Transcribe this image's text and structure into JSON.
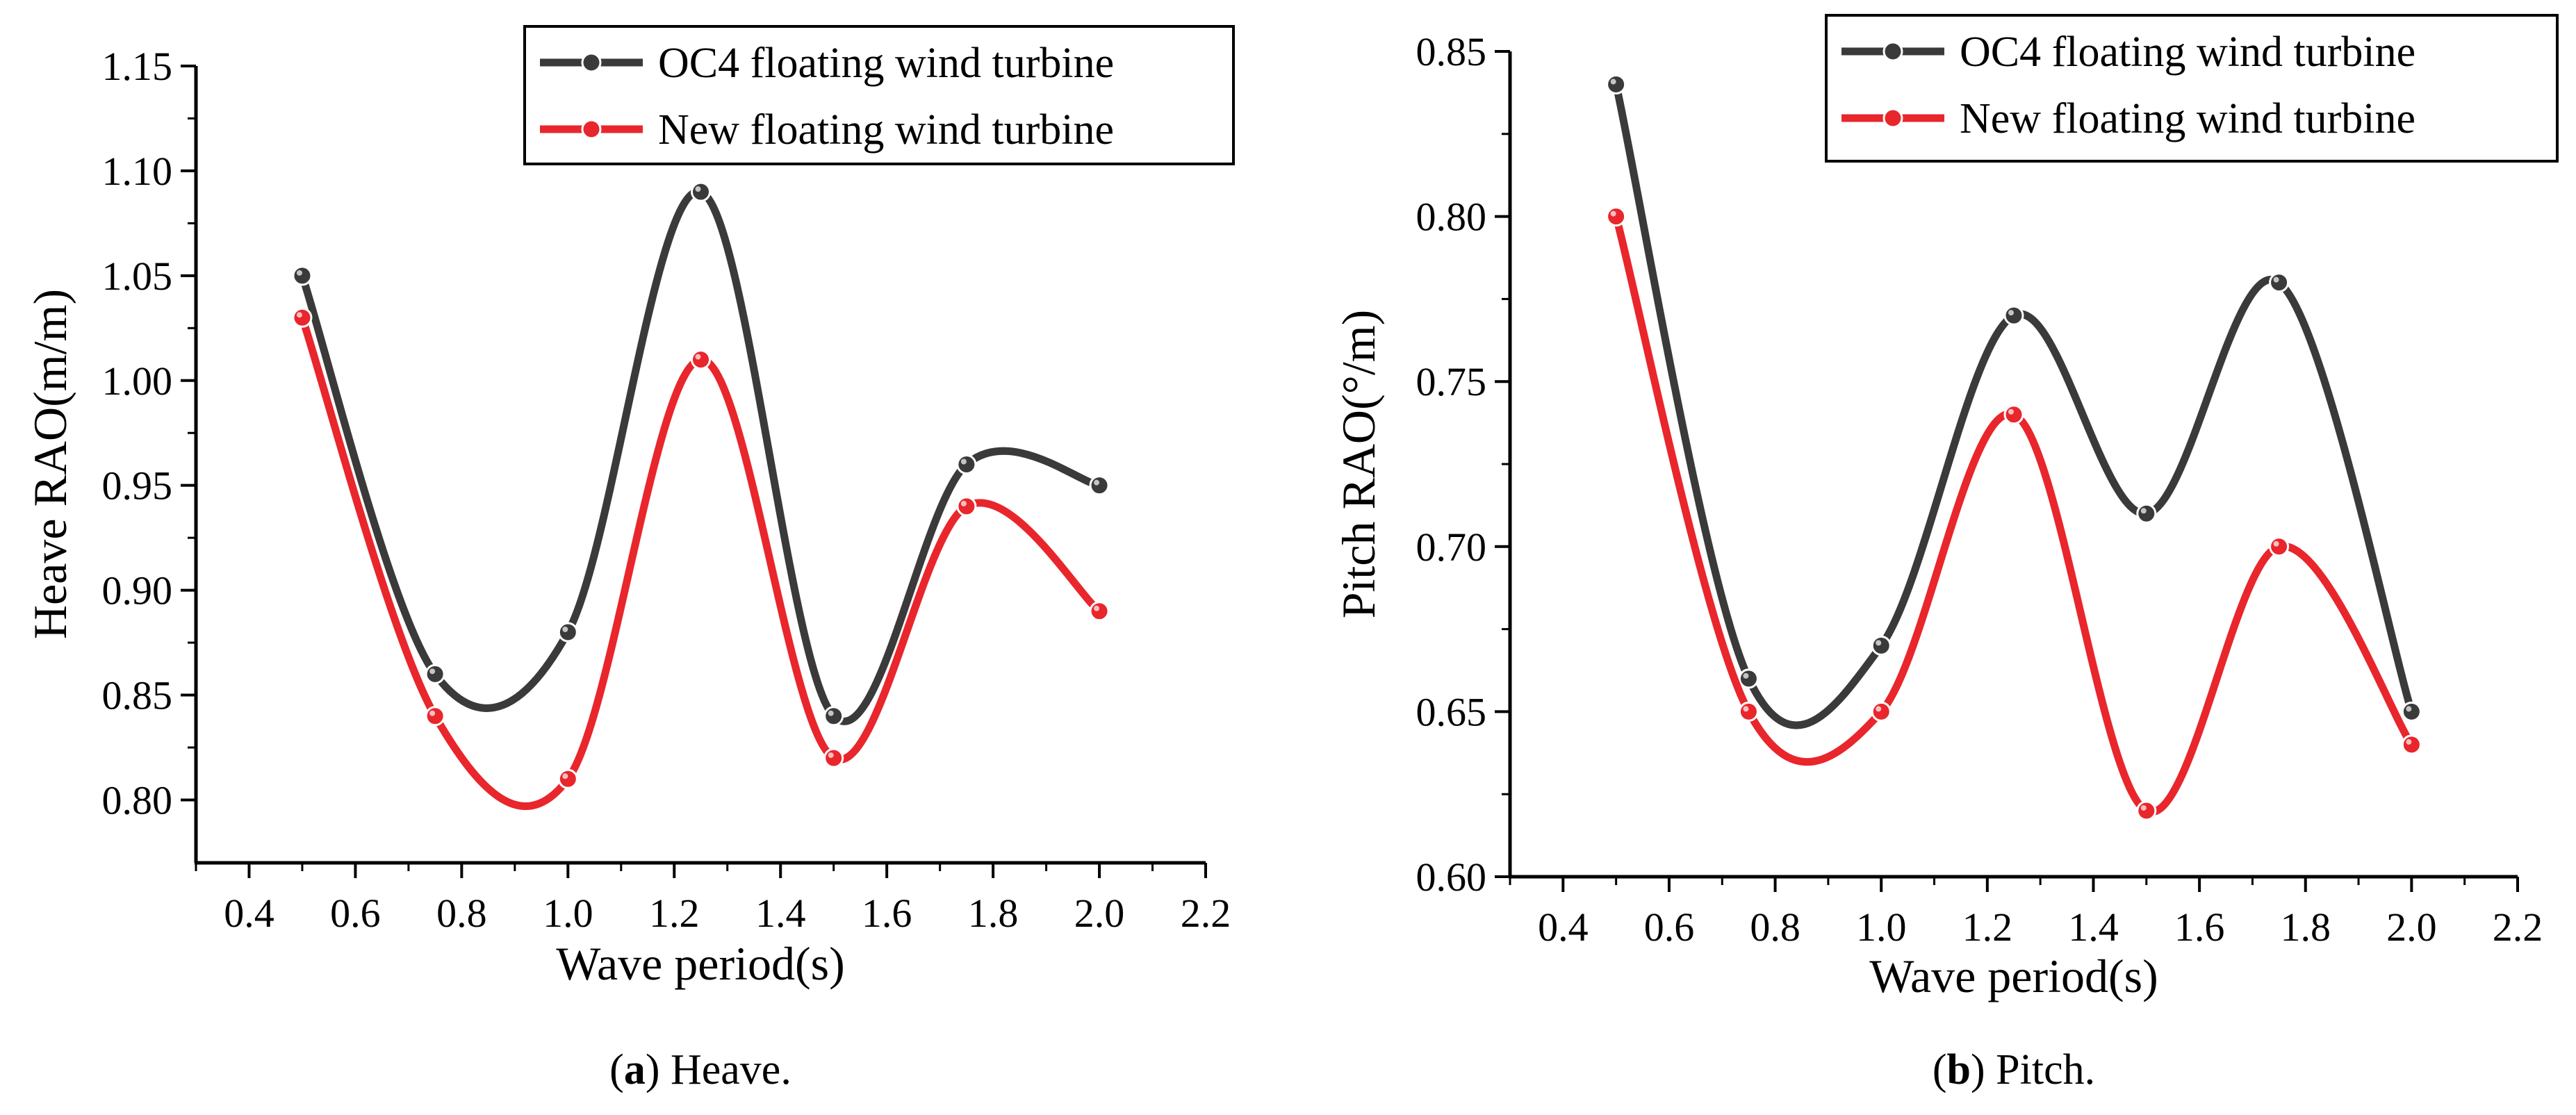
{
  "chart_data": [
    {
      "type": "line",
      "title": "",
      "xlabel": "Wave period(s)",
      "ylabel": "Heave RAO(m/m)",
      "x": [
        0.5,
        0.75,
        1.0,
        1.25,
        1.5,
        1.75,
        2.0
      ],
      "xlim": [
        0.3,
        2.2
      ],
      "ylim": [
        0.77,
        1.15
      ],
      "xticks": [
        "0.4",
        "0.6",
        "0.8",
        "1.0",
        "1.2",
        "1.4",
        "1.6",
        "1.8",
        "2.0",
        "2.2"
      ],
      "yticks": [
        "0.80",
        "0.85",
        "0.90",
        "0.95",
        "1.00",
        "1.05",
        "1.10",
        "1.15"
      ],
      "legend_position": "top-right",
      "series": [
        {
          "name": "OC4 floating wind turbine",
          "color": "#3a3a3a",
          "values": [
            1.05,
            0.86,
            0.88,
            1.09,
            0.84,
            0.96,
            0.95
          ]
        },
        {
          "name": "New floating wind turbine",
          "color": "#e8262c",
          "values": [
            1.03,
            0.84,
            0.81,
            1.01,
            0.82,
            0.94,
            0.89
          ]
        }
      ],
      "caption": {
        "letter": "a",
        "text": " Heave."
      }
    },
    {
      "type": "line",
      "title": "",
      "xlabel": "Wave period(s)",
      "ylabel": "Pitch RAO(°/m)",
      "x": [
        0.5,
        0.75,
        1.0,
        1.25,
        1.5,
        1.75,
        2.0
      ],
      "xlim": [
        0.3,
        2.2
      ],
      "ylim": [
        0.6,
        0.85
      ],
      "xticks": [
        "0.4",
        "0.6",
        "0.8",
        "1.0",
        "1.2",
        "1.4",
        "1.6",
        "1.8",
        "2.0",
        "2.2"
      ],
      "yticks": [
        "0.60",
        "0.65",
        "0.70",
        "0.75",
        "0.80",
        "0.85"
      ],
      "legend_position": "top-right",
      "series": [
        {
          "name": "OC4 floating wind turbine",
          "color": "#3a3a3a",
          "values": [
            0.84,
            0.66,
            0.67,
            0.77,
            0.71,
            0.78,
            0.65
          ]
        },
        {
          "name": "New floating wind turbine",
          "color": "#e8262c",
          "values": [
            0.8,
            0.65,
            0.65,
            0.74,
            0.62,
            0.7,
            0.64
          ]
        }
      ],
      "caption": {
        "letter": "b",
        "text": " Pitch."
      }
    }
  ]
}
